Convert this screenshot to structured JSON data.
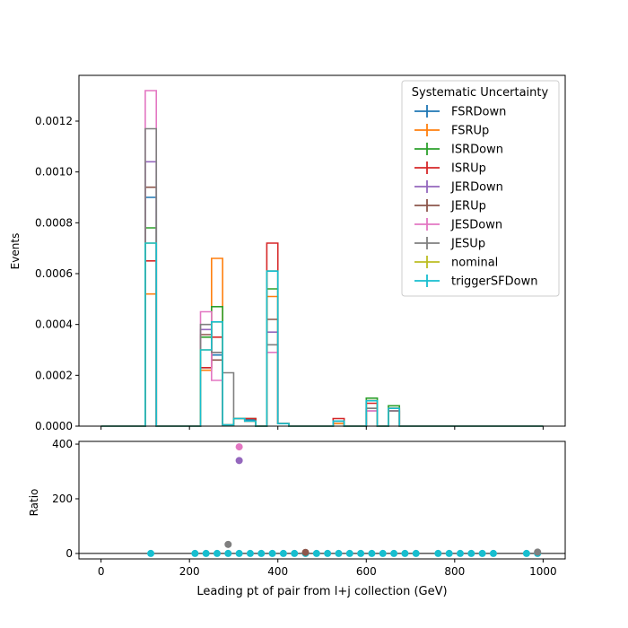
{
  "chart_data": [
    {
      "type": "line",
      "panel": "main",
      "drawstyle": "steps",
      "xlim": [
        -50,
        1050
      ],
      "ylim": [
        0,
        0.00138
      ],
      "ylabel": "Events",
      "yticks": [
        "0.0000",
        "0.0002",
        "0.0004",
        "0.0006",
        "0.0008",
        "0.0010",
        "0.0012"
      ],
      "ytick_values": [
        0,
        0.0002,
        0.0004,
        0.0006,
        0.0008,
        0.001,
        0.0012
      ],
      "xticks": [
        "0",
        "200",
        "400",
        "600",
        "800",
        "1000"
      ],
      "xtick_values": [
        0,
        200,
        400,
        600,
        800,
        1000
      ],
      "bin_edges": [
        0,
        25,
        50,
        75,
        100,
        125,
        150,
        175,
        200,
        225,
        250,
        275,
        300,
        325,
        350,
        375,
        400,
        425,
        450,
        475,
        500,
        525,
        550,
        575,
        600,
        625,
        650,
        675,
        700,
        725,
        750,
        775,
        800,
        825,
        850,
        875,
        900,
        925,
        950,
        975,
        1000
      ],
      "legend_title": "Systematic Uncertainty",
      "legend_position": "top-right",
      "series": [
        {
          "name": "FSRDown",
          "color": "#1f77b4",
          "values": [
            0,
            0,
            0,
            0,
            0.0009,
            0,
            0,
            0,
            0,
            0.00023,
            0.00028,
            5e-06,
            3e-05,
            2.5e-05,
            0,
            0.00061,
            1e-05,
            0,
            0,
            0,
            0,
            2e-05,
            0,
            0,
            0.0001,
            0,
            7e-05,
            0,
            0,
            0,
            0,
            0,
            0,
            0,
            0,
            0,
            0,
            0,
            0,
            0
          ]
        },
        {
          "name": "FSRUp",
          "color": "#ff7f0e",
          "values": [
            0,
            0,
            0,
            0,
            0.00052,
            0,
            0,
            0,
            0,
            0.00022,
            0.00066,
            5e-06,
            3e-05,
            2e-05,
            0,
            0.00051,
            1e-05,
            0,
            0,
            0,
            0,
            1e-05,
            0,
            0,
            0.0001,
            0,
            7e-05,
            0,
            0,
            0,
            0,
            0,
            0,
            0,
            0,
            0,
            0,
            0,
            0,
            0
          ]
        },
        {
          "name": "ISRDown",
          "color": "#2ca02c",
          "values": [
            0,
            0,
            0,
            0,
            0.00078,
            0,
            0,
            0,
            0,
            0.00035,
            0.00047,
            5e-06,
            3e-05,
            3e-05,
            0,
            0.00054,
            1e-05,
            0,
            0,
            0,
            0,
            2e-05,
            0,
            0,
            0.00011,
            0,
            8e-05,
            0,
            0,
            0,
            0,
            0,
            0,
            0,
            0,
            0,
            0,
            0,
            0,
            0
          ]
        },
        {
          "name": "ISRUp",
          "color": "#d62728",
          "values": [
            0,
            0,
            0,
            0,
            0.00065,
            0,
            0,
            0,
            0,
            0.00023,
            0.00035,
            5e-06,
            3e-05,
            3e-05,
            0,
            0.00072,
            1e-05,
            0,
            0,
            0,
            0,
            3e-05,
            0,
            0,
            9e-05,
            0,
            7e-05,
            0,
            0,
            0,
            0,
            0,
            0,
            0,
            0,
            0,
            0,
            0,
            0,
            0
          ]
        },
        {
          "name": "JERDown",
          "color": "#9467bd",
          "values": [
            0,
            0,
            0,
            0,
            0.00104,
            0,
            0,
            0,
            0,
            0.00038,
            0.00029,
            5e-06,
            3e-05,
            2e-05,
            0,
            0.00037,
            1e-05,
            0,
            0,
            0,
            0,
            2e-05,
            0,
            0,
            6e-05,
            0,
            6e-05,
            0,
            0,
            0,
            0,
            0,
            0,
            0,
            0,
            0,
            0,
            0,
            0,
            0
          ]
        },
        {
          "name": "JERUp",
          "color": "#8c564b",
          "values": [
            0,
            0,
            0,
            0,
            0.00094,
            0,
            0,
            0,
            0,
            0.00036,
            0.00026,
            5e-06,
            3e-05,
            2e-05,
            0,
            0.00042,
            1e-05,
            0,
            0,
            0,
            0,
            2e-05,
            0,
            0,
            7e-05,
            0,
            6e-05,
            0,
            0,
            0,
            0,
            0,
            0,
            0,
            0,
            0,
            0,
            0,
            0,
            0
          ]
        },
        {
          "name": "JESDown",
          "color": "#e377c2",
          "values": [
            0,
            0,
            0,
            0,
            0.00132,
            0,
            0,
            0,
            0,
            0.00045,
            0.00018,
            5e-06,
            3e-05,
            2e-05,
            0,
            0.00029,
            1e-05,
            0,
            0,
            0,
            0,
            2e-05,
            0,
            0,
            6e-05,
            0,
            6e-05,
            0,
            0,
            0,
            0,
            0,
            0,
            0,
            0,
            0,
            0,
            0,
            0,
            0
          ]
        },
        {
          "name": "JESUp",
          "color": "#7f7f7f",
          "values": [
            0,
            0,
            0,
            0,
            0.00117,
            0,
            0,
            0,
            0,
            0.0004,
            0.00029,
            0.00021,
            3e-05,
            2e-05,
            0,
            0.00032,
            1e-05,
            0,
            0,
            0,
            0,
            2e-05,
            0,
            0,
            7e-05,
            0,
            6e-05,
            0,
            0,
            0,
            0,
            0,
            0,
            0,
            0,
            0,
            0,
            0,
            0,
            0
          ]
        },
        {
          "name": "nominal",
          "color": "#bcbd22",
          "values": [
            0,
            0,
            0,
            0,
            0.00072,
            0,
            0,
            0,
            0,
            0.0003,
            0.00041,
            5e-06,
            3e-05,
            2e-05,
            0,
            0.00061,
            1e-05,
            0,
            0,
            0,
            0,
            2e-05,
            0,
            0,
            0.0001,
            0,
            7e-05,
            0,
            0,
            0,
            0,
            0,
            0,
            0,
            0,
            0,
            0,
            0,
            0,
            0
          ]
        },
        {
          "name": "triggerSFDown",
          "color": "#17becf",
          "values": [
            0,
            0,
            0,
            0,
            0.00072,
            0,
            0,
            0,
            0,
            0.0003,
            0.00041,
            5e-06,
            3e-05,
            2e-05,
            0,
            0.00061,
            1e-05,
            0,
            0,
            0,
            0,
            2e-05,
            0,
            0,
            0.0001,
            0,
            7e-05,
            0,
            0,
            0,
            0,
            0,
            0,
            0,
            0,
            0,
            0,
            0,
            0,
            0
          ]
        }
      ]
    },
    {
      "type": "scatter",
      "panel": "ratio",
      "xlim": [
        -50,
        1050
      ],
      "ylim": [
        -20,
        410
      ],
      "ylabel": "Ratio",
      "xlabel": "Leading pt of pair from l+j collection (GeV)",
      "yticks": [
        "0",
        "200",
        "400"
      ],
      "ytick_values": [
        0,
        200,
        400
      ],
      "xticks": [
        "0",
        "200",
        "400",
        "600",
        "800",
        "1000"
      ],
      "xtick_values": [
        0,
        200,
        400,
        600,
        800,
        1000
      ],
      "reference_line": 0,
      "points": [
        {
          "x": 312.5,
          "y": 390,
          "color": "#e377c2"
        },
        {
          "x": 312.5,
          "y": 340,
          "color": "#9467bd"
        },
        {
          "x": 287.5,
          "y": 33,
          "color": "#7f7f7f"
        },
        {
          "x": 462.5,
          "y": 4,
          "color": "#8c564b"
        },
        {
          "x": 987.5,
          "y": 5,
          "color": "#7f7f7f"
        }
      ],
      "baseline_points": {
        "color": "#17becf",
        "y": 0,
        "x": [
          112.5,
          212.5,
          237.5,
          262.5,
          287.5,
          312.5,
          337.5,
          362.5,
          387.5,
          412.5,
          437.5,
          462.5,
          487.5,
          512.5,
          537.5,
          562.5,
          587.5,
          612.5,
          637.5,
          662.5,
          687.5,
          712.5,
          762.5,
          787.5,
          812.5,
          837.5,
          862.5,
          887.5,
          962.5,
          987.5
        ]
      }
    }
  ]
}
